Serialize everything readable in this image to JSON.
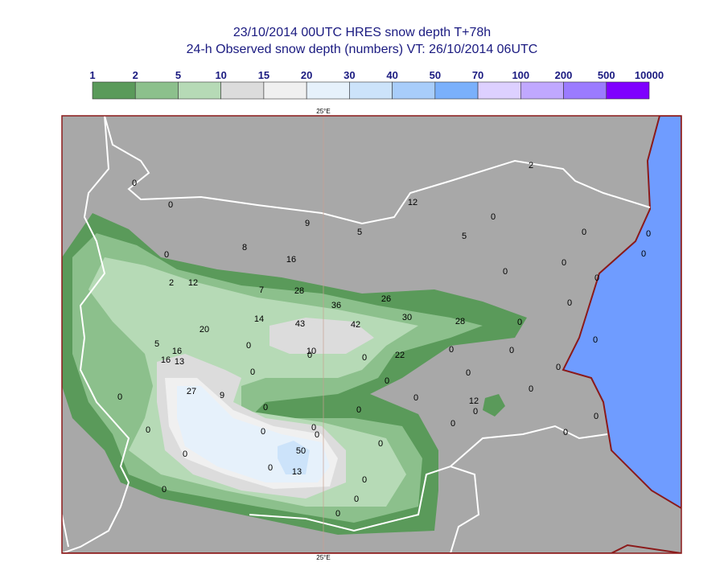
{
  "header": {
    "title": "23/10/2014 00UTC HRES snow depth T+78h",
    "subtitle": "24-h Observed snow depth (numbers) VT: 26/10/2014 06UTC"
  },
  "colorbar": {
    "labels": [
      "1",
      "2",
      "5",
      "10",
      "15",
      "20",
      "30",
      "40",
      "50",
      "70",
      "100",
      "200",
      "500",
      "10000"
    ],
    "colors": [
      "#5a9a5a",
      "#8cc08c",
      "#b6dab6",
      "#dcdcdc",
      "#f0f0f0",
      "#e6f1fb",
      "#cce3fa",
      "#a8cdfa",
      "#7ab0fb",
      "#ddd0ff",
      "#c0a8ff",
      "#9b7bff",
      "#7f00ff"
    ]
  },
  "map": {
    "lon_label_top": "25°E",
    "lon_label_bottom": "25°E",
    "observations": [
      0,
      0,
      9,
      5,
      12,
      2,
      0,
      5,
      0,
      0,
      0,
      8,
      0,
      16,
      0,
      0,
      0,
      2,
      12,
      7,
      28,
      26,
      36,
      0,
      30,
      28,
      0,
      14,
      43,
      42,
      20,
      5,
      0,
      16,
      10,
      0,
      0,
      22,
      0,
      0,
      0,
      16,
      13,
      0,
      0,
      0,
      0,
      27,
      9,
      0,
      0,
      0,
      12,
      0,
      0,
      0,
      0,
      0,
      0,
      0,
      0,
      0,
      0,
      0,
      50,
      0,
      0,
      13,
      0,
      0,
      0,
      0
    ]
  }
}
